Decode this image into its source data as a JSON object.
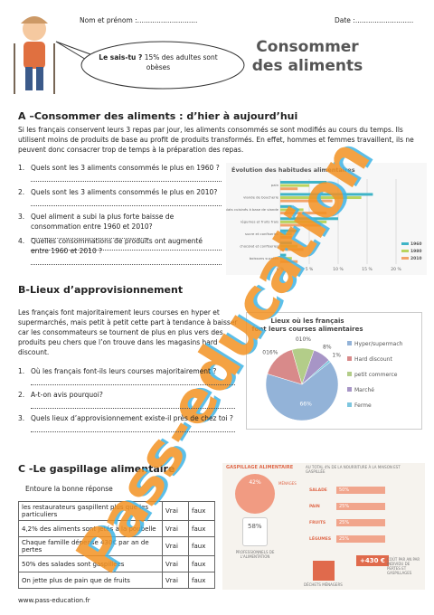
{
  "header": {
    "name_label": "Nom et prénom :............................",
    "date_label": "Date :...........................",
    "title": "Consommer des aliments",
    "fact_bold": "Le sais-tu ?",
    "fact_text": "15% des adultes sont obèses"
  },
  "section_a": {
    "heading": "A –Consommer des aliments : d’hier à aujourd’hui",
    "intro": "Si les français conservent leurs 3 repas par jour, les aliments consommés se sont modifiés au cours du temps. Ils utilisent moins de produits de base au profit de produits transformés. En effet, hommes et femmes travaillent, ils ne peuvent donc consacrer trop de temps à la préparation des repas.",
    "questions": [
      {
        "number": "1.",
        "text": "Quels sont les 3 aliments consommés le plus en 1960 ?"
      },
      {
        "number": "2.",
        "text": "Quels sont les 3 aliments consommés le plus en 2010?"
      },
      {
        "number": "3.",
        "text": "Quel aliment a subi la plus forte baisse de consommation entre 1960 et 2010? ......................................................."
      },
      {
        "number": "4.",
        "text": "Quelles consommations de produits ont augmenté entre 1960 et 2010 ?"
      }
    ],
    "chart": {
      "type": "bar",
      "title": "Évolution des habitudes alimentaires",
      "categories": [
        "pain",
        "viande de boucherie",
        "plats cuisinés à base de viande",
        "légumes et fruits frais",
        "sucre et confiseries",
        "chocolat et confiseries",
        "boissons sucrées"
      ],
      "series": [
        {
          "name": "1960",
          "color": "#3fb4c6",
          "values": [
            8,
            16,
            2,
            10,
            3,
            2,
            1
          ]
        },
        {
          "name": "1980",
          "color": "#b9d45e",
          "values": [
            5,
            14,
            4,
            8,
            2,
            3,
            2
          ]
        },
        {
          "name": "2010",
          "color": "#f2a36a",
          "values": [
            3,
            9,
            8,
            7,
            2,
            4,
            3
          ]
        }
      ],
      "xlim": [
        0,
        20
      ],
      "xticks": [
        {
          "value": 0,
          "label": "0 %"
        },
        {
          "value": 5,
          "label": "5 %"
        },
        {
          "value": 10,
          "label": "10 %"
        },
        {
          "value": 15,
          "label": "15 %"
        },
        {
          "value": 20,
          "label": "20 %"
        }
      ]
    }
  },
  "section_b": {
    "heading": "B-Lieux d’approvisionnement",
    "intro": "Les français font majoritairement leurs courses en hyper et supermarchés, mais petit à petit cette part à tendance à baisser car les consommateurs se tournent de plus en plus vers des produits peu chers que l’on trouve dans les magasins hard discount.",
    "questions": [
      {
        "number": "1.",
        "text": "Où les français font-ils leurs courses majoritairement ?"
      },
      {
        "number": "2.",
        "text": "A-t-on avis pourquoi?"
      },
      {
        "number": "3.",
        "text": "Quels lieux d’approvisionnement existe-il près de chez toi ?"
      }
    ],
    "chart": {
      "type": "pie",
      "title": "Lieux où les français font leurs courses alimentaires",
      "categories": [
        "Hyper/supermach",
        "Hard discount",
        "petit commerce",
        "Marché",
        "Ferme"
      ],
      "values": [
        66,
        16,
        10,
        8,
        1
      ],
      "value_labels": [
        "66%",
        "016%",
        "010%",
        "8%",
        "1%"
      ],
      "colors": [
        "#93b3d8",
        "#d88a8a",
        "#b3cd89",
        "#a795c6",
        "#7ec6df"
      ]
    }
  },
  "section_c": {
    "heading": "C -Le gaspillage alimentaire",
    "instruction": "Entoure la bonne réponse",
    "table": {
      "rows": [
        [
          "les restaurateurs gaspillent plus que les particuliers",
          "Vrai",
          "faux"
        ],
        [
          "4,2% des aliments sont jetés à la poubelle",
          "Vrai",
          "faux"
        ],
        [
          "Chaque famille dépense 430€ par an de pertes",
          "Vrai",
          "faux"
        ],
        [
          "50% des salades sont gaspillées",
          "Vrai",
          "faux"
        ],
        [
          "On jette plus de pain que de fruits",
          "Vrai",
          "faux"
        ]
      ]
    },
    "infographic": {
      "title": "GASPILLAGE ALIMENTAIRE",
      "households_pct": "42%",
      "households": "MÉNAGES",
      "professionals_pct": "58%",
      "professionals": "PROFESSIONNELS DE L'ALIMENTATION",
      "total": "AU TOTAL 4% DE LA NOURRITURE À LA MAISON EST GASPILLÉE",
      "items": [
        {
          "name": "SALADE",
          "pct": "50%"
        },
        {
          "name": "PAIN",
          "pct": "25%"
        },
        {
          "name": "FRUITS",
          "pct": "25%"
        },
        {
          "name": "LÉGUMES",
          "pct": "25%"
        }
      ],
      "cost": "+430 €",
      "cost_text": "COÛT PAR AN PAR INDIVIDU DE PERTES ET GASPILLAGES",
      "waste": "DÉCHETS MÉNAGERS"
    }
  },
  "watermark": "Pass-education",
  "footer": "www.pass-education.fr"
}
